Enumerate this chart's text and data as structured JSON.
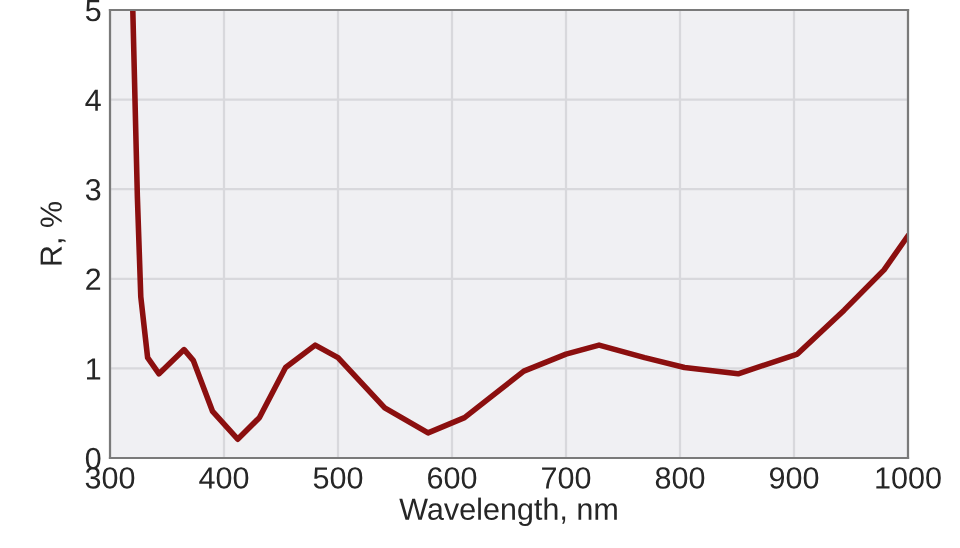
{
  "chart_data": {
    "type": "line",
    "xlabel": "Wavelength, nm",
    "ylabel": "R, %",
    "xlim": [
      300,
      1000
    ],
    "xticks": [
      300,
      400,
      500,
      600,
      700,
      800,
      900,
      1000
    ],
    "ylim": [
      0,
      5
    ],
    "yticks": [
      0,
      1,
      2,
      3,
      4,
      5
    ],
    "grid": true,
    "marker": "none",
    "line_style": "solid",
    "series": [
      {
        "color": "#8b0f0f",
        "x": [
          320,
          324,
          327,
          333,
          343,
          365,
          373,
          390,
          412,
          431,
          454,
          480,
          500,
          541,
          579,
          611,
          630,
          663,
          700,
          729,
          769,
          804,
          851,
          903,
          944,
          979,
          1000
        ],
        "values": [
          5,
          2.92,
          1.8,
          1.12,
          0.94,
          1.21,
          1.09,
          0.52,
          0.21,
          0.45,
          1.01,
          1.26,
          1.12,
          0.56,
          0.28,
          0.45,
          0.64,
          0.97,
          1.16,
          1.26,
          1.12,
          1.01,
          0.94,
          1.16,
          1.65,
          2.1,
          2.48
        ]
      }
    ]
  }
}
